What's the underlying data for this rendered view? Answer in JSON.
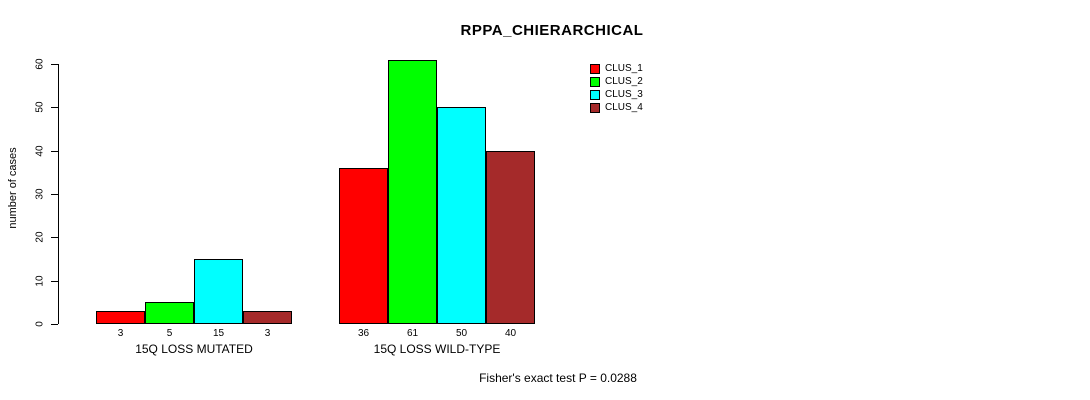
{
  "chart_data": {
    "type": "bar",
    "title": "RPPA_CHIERARCHICAL",
    "ylabel": "number of cases",
    "ylim": [
      0,
      60
    ],
    "yticks": [
      0,
      10,
      20,
      30,
      40,
      50,
      60
    ],
    "categories": [
      "15Q LOSS MUTATED",
      "15Q LOSS WILD-TYPE"
    ],
    "series": [
      {
        "name": "CLUS_1",
        "color": "#ff0000",
        "values": [
          3,
          36
        ]
      },
      {
        "name": "CLUS_2",
        "color": "#00ff00",
        "values": [
          5,
          61
        ]
      },
      {
        "name": "CLUS_3",
        "color": "#00ffff",
        "values": [
          15,
          50
        ]
      },
      {
        "name": "CLUS_4",
        "color": "#a52a2a",
        "values": [
          3,
          40
        ]
      }
    ],
    "bar_value_labels": [
      [
        3,
        5,
        15,
        3
      ],
      [
        36,
        61,
        50,
        40
      ]
    ],
    "legend_position": "top-right",
    "grid": false,
    "footer": "Fisher's exact test P = 0.0288"
  }
}
